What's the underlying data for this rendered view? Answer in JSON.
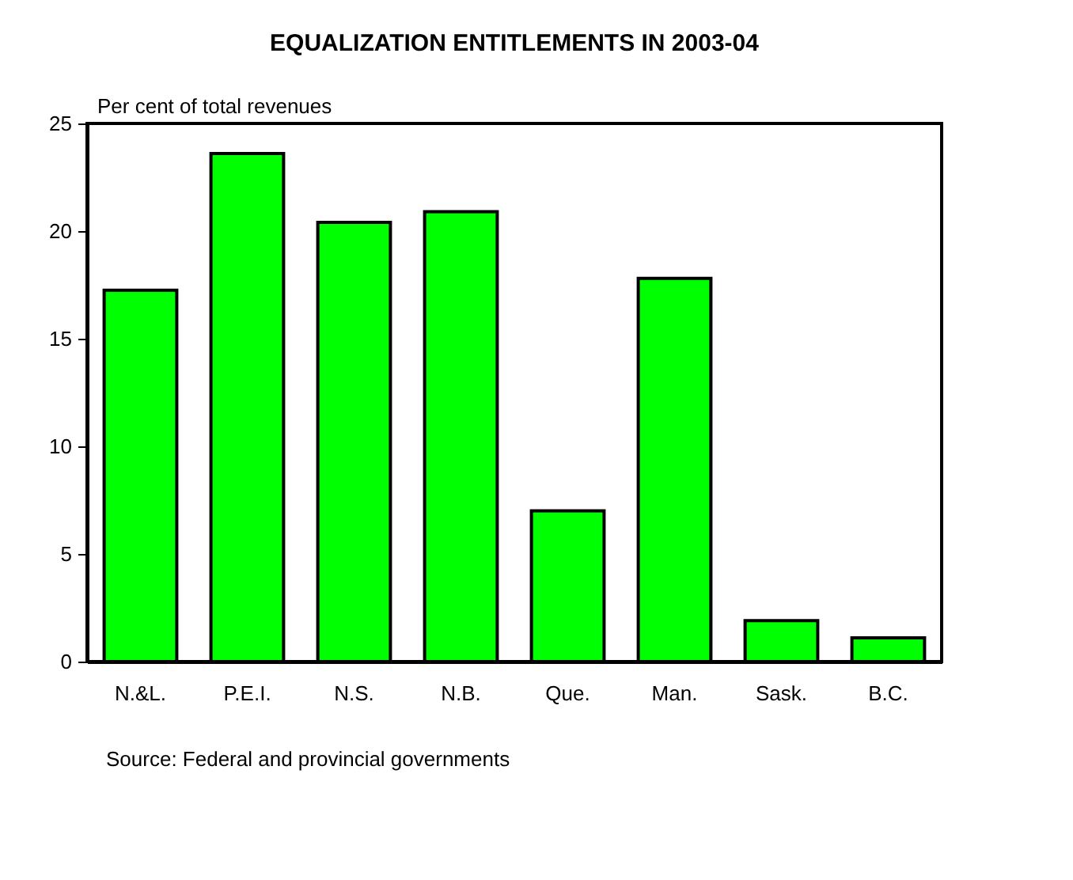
{
  "chart_data": {
    "type": "bar",
    "title": "EQUALIZATION ENTITLEMENTS IN 2003-04",
    "ylabel": "Per cent of total revenues",
    "categories": [
      "N.&L.",
      "P.E.I.",
      "N.S.",
      "N.B.",
      "Que.",
      "Man.",
      "Sask.",
      "B.C."
    ],
    "values": [
      17.25,
      23.6,
      20.4,
      20.9,
      7.0,
      17.8,
      1.9,
      1.1
    ],
    "color": "#00ff00",
    "ylim": [
      0,
      25
    ],
    "yticks": [
      0,
      5,
      10,
      15,
      20,
      25
    ],
    "grid": false,
    "annotations": [
      "Source: Federal and provincial governments"
    ]
  }
}
